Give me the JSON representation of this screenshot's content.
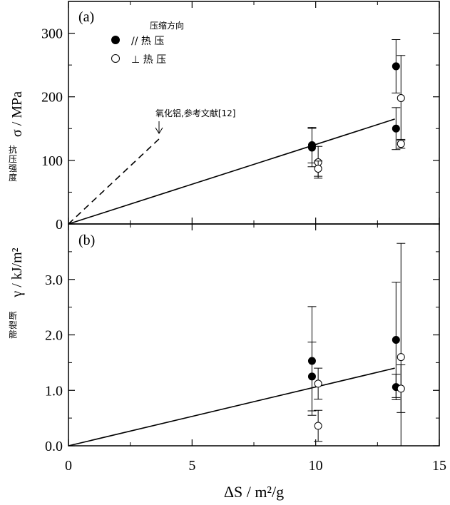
{
  "chart_data": [
    {
      "type": "scatter",
      "panel_label": "(a)",
      "ylabel_cn": "抗压强度",
      "ylabel": "σ / MPa",
      "ylim": [
        0,
        350
      ],
      "yticks": [
        "0",
        "100",
        "200",
        "300"
      ],
      "legend_header": "压缩方向",
      "legend": [
        {
          "symbol": "filled-circle",
          "label": "// 热 压"
        },
        {
          "symbol": "open-circle",
          "label": "⊥ 热 压"
        }
      ],
      "annotation": "氧化铝,参考文献[12]",
      "series": [
        {
          "name": "// 热 压",
          "marker": "filled",
          "points": [
            {
              "x": 9.85,
              "y": 124,
              "err": 28
            },
            {
              "x": 9.85,
              "y": 120,
              "err": 30
            },
            {
              "x": 13.25,
              "y": 248,
              "err": 42
            },
            {
              "x": 13.25,
              "y": 150,
              "err": 33
            }
          ]
        },
        {
          "name": "⊥ 热 压",
          "marker": "open",
          "points": [
            {
              "x": 10.1,
              "y": 97,
              "err": 25
            },
            {
              "x": 10.1,
              "y": 87,
              "err": 12
            },
            {
              "x": 13.45,
              "y": 198,
              "err": 67
            },
            {
              "x": 13.45,
              "y": 126,
              "err": 7
            }
          ]
        }
      ],
      "fit_line": {
        "x": [
          0,
          13.2
        ],
        "y": [
          0,
          165
        ]
      },
      "reference_line": {
        "x": [
          0,
          3.7
        ],
        "y": [
          0,
          135
        ]
      }
    },
    {
      "type": "scatter",
      "panel_label": "(b)",
      "ylabel_cn": "断裂能",
      "ylabel": "γ / kJ/m²",
      "ylim": [
        0,
        4.0
      ],
      "yticks": [
        "0.0",
        "1.0",
        "2.0",
        "3.0"
      ],
      "xlabel": "ΔS / m²/g",
      "xlim": [
        0,
        15
      ],
      "xticks": [
        "0",
        "5",
        "10",
        "15"
      ],
      "series": [
        {
          "name": "// 热 压",
          "marker": "filled",
          "points": [
            {
              "x": 9.85,
              "y": 1.53,
              "err": 0.98
            },
            {
              "x": 9.85,
              "y": 1.25,
              "err": 0.62
            },
            {
              "x": 13.25,
              "y": 1.91,
              "err": 1.04
            },
            {
              "x": 13.25,
              "y": 1.06,
              "err": 0.23
            }
          ]
        },
        {
          "name": "⊥ 热 压",
          "marker": "open",
          "points": [
            {
              "x": 10.1,
              "y": 1.12,
              "err": 0.28
            },
            {
              "x": 10.1,
              "y": 0.36,
              "err": 0.28
            },
            {
              "x": 13.45,
              "y": 1.6,
              "err": 2.05
            },
            {
              "x": 13.45,
              "y": 1.03,
              "err": 0.43
            }
          ]
        }
      ],
      "fit_line": {
        "x": [
          0,
          13.2
        ],
        "y": [
          0,
          1.4
        ]
      }
    }
  ]
}
